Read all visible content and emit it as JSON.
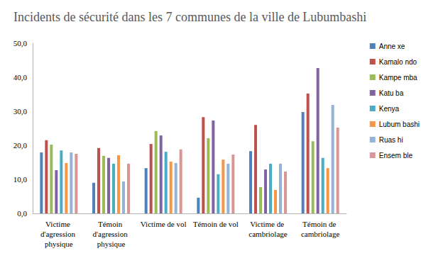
{
  "chart_data": {
    "type": "bar",
    "title": "Incidents de sécurité dans les 7 communes de la ville de Lubumbashi",
    "categories": [
      "Victime d'agression physique",
      "Témoin d'agression physique",
      "Victime de vol",
      "Témoin de vol",
      "Victime de cambriolage",
      "Témoin de cambriolage"
    ],
    "series": [
      {
        "name": "Anne xe",
        "color": "#4f81bd",
        "values": [
          17.9,
          9.0,
          13.3,
          4.6,
          18.3,
          29.8
        ]
      },
      {
        "name": "Kamalo ndo",
        "color": "#c0504d",
        "values": [
          21.5,
          19.2,
          20.4,
          28.3,
          26.0,
          35.2
        ]
      },
      {
        "name": "Kampe mba",
        "color": "#9bbb59",
        "values": [
          20.2,
          16.9,
          24.2,
          22.1,
          7.7,
          21.2
        ]
      },
      {
        "name": "Katu ba",
        "color": "#8064a2",
        "values": [
          12.7,
          16.3,
          22.9,
          27.3,
          12.9,
          42.7
        ]
      },
      {
        "name": "Kenya",
        "color": "#4bacc6",
        "values": [
          18.5,
          14.6,
          18.1,
          11.5,
          14.6,
          16.3
        ]
      },
      {
        "name": "Lubum bashi",
        "color": "#f79646",
        "values": [
          14.8,
          17.1,
          15.2,
          15.8,
          6.9,
          13.3
        ]
      },
      {
        "name": "Ruas hi",
        "color": "#95b3d7",
        "values": [
          17.9,
          9.4,
          14.8,
          14.6,
          14.6,
          31.9
        ]
      },
      {
        "name": "Ensem ble",
        "color": "#d99694",
        "values": [
          17.5,
          14.6,
          18.8,
          17.3,
          12.3,
          25.2
        ]
      }
    ],
    "ylim": [
      0,
      50
    ],
    "yticks": [
      {
        "value": 0,
        "label": "0,0"
      },
      {
        "value": 10,
        "label": "10,0"
      },
      {
        "value": 20,
        "label": "20,0"
      },
      {
        "value": 30,
        "label": "30,0"
      },
      {
        "value": 40,
        "label": "40,0"
      },
      {
        "value": 50,
        "label": "50,0"
      }
    ],
    "grid": false,
    "legend": "right"
  }
}
